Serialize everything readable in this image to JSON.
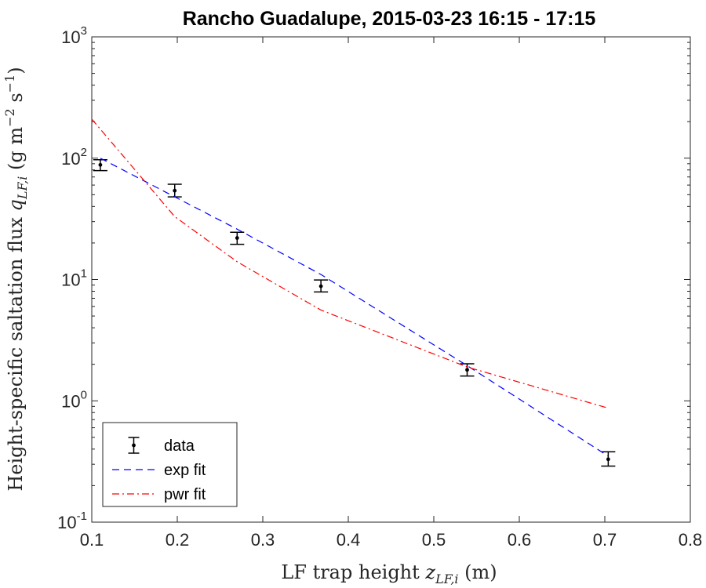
{
  "chart_data": {
    "type": "scatter",
    "title": "Rancho Guadalupe, 2015-03-23 16:15 - 17:15",
    "xlabel": {
      "text": "LF trap height ",
      "var": "z",
      "sub": "LF,i",
      "unit": " (m)"
    },
    "ylabel": {
      "text": "Height-specific saltation flux ",
      "var": "q",
      "sub": "LF,i",
      "unit_open": " (g m",
      "unit_exp1": "−2",
      "unit_mid": " s",
      "unit_exp2": "−1",
      "unit_close": ")"
    },
    "xlim": [
      0.1,
      0.8
    ],
    "ylim": [
      0.1,
      1000
    ],
    "yscale": "log",
    "grid": false,
    "legend_position": "bottom-left",
    "xticks": [
      0.1,
      0.2,
      0.3,
      0.4,
      0.5,
      0.6,
      0.7,
      0.8
    ],
    "xtick_labels": [
      "0.1",
      "0.2",
      "0.3",
      "0.4",
      "0.5",
      "0.6",
      "0.7",
      "0.8"
    ],
    "yticks": [
      {
        "value": 0.1,
        "base": "10",
        "exp": "-1"
      },
      {
        "value": 1,
        "base": "10",
        "exp": "0"
      },
      {
        "value": 10,
        "base": "10",
        "exp": "1"
      },
      {
        "value": 100,
        "base": "10",
        "exp": "2"
      },
      {
        "value": 1000,
        "base": "10",
        "exp": "3"
      }
    ],
    "series": [
      {
        "name": "data",
        "kind": "errorbar",
        "color": "#000000",
        "points": [
          {
            "x": 0.11,
            "y": 88,
            "ylow": 79,
            "yhigh": 97
          },
          {
            "x": 0.197,
            "y": 54,
            "ylow": 48,
            "yhigh": 61
          },
          {
            "x": 0.27,
            "y": 22,
            "ylow": 19.5,
            "yhigh": 24.5
          },
          {
            "x": 0.368,
            "y": 8.8,
            "ylow": 7.9,
            "yhigh": 9.9
          },
          {
            "x": 0.539,
            "y": 1.8,
            "ylow": 1.6,
            "yhigh": 2.02
          },
          {
            "x": 0.704,
            "y": 0.33,
            "ylow": 0.29,
            "yhigh": 0.38
          }
        ]
      },
      {
        "name": "exp fit",
        "kind": "line",
        "dash": "dashed",
        "color": "#0000ff",
        "x": [
          0.11,
          0.197,
          0.27,
          0.368,
          0.539,
          0.704
        ],
        "y": [
          100,
          48,
          26,
          11,
          1.95,
          0.35
        ]
      },
      {
        "name": "pwr fit",
        "kind": "line",
        "dash": "dashdot",
        "color": "#ff0000",
        "x": [
          0.1,
          0.197,
          0.27,
          0.368,
          0.539,
          0.704
        ],
        "y": [
          210,
          33,
          14,
          5.6,
          1.9,
          0.87
        ]
      }
    ]
  }
}
